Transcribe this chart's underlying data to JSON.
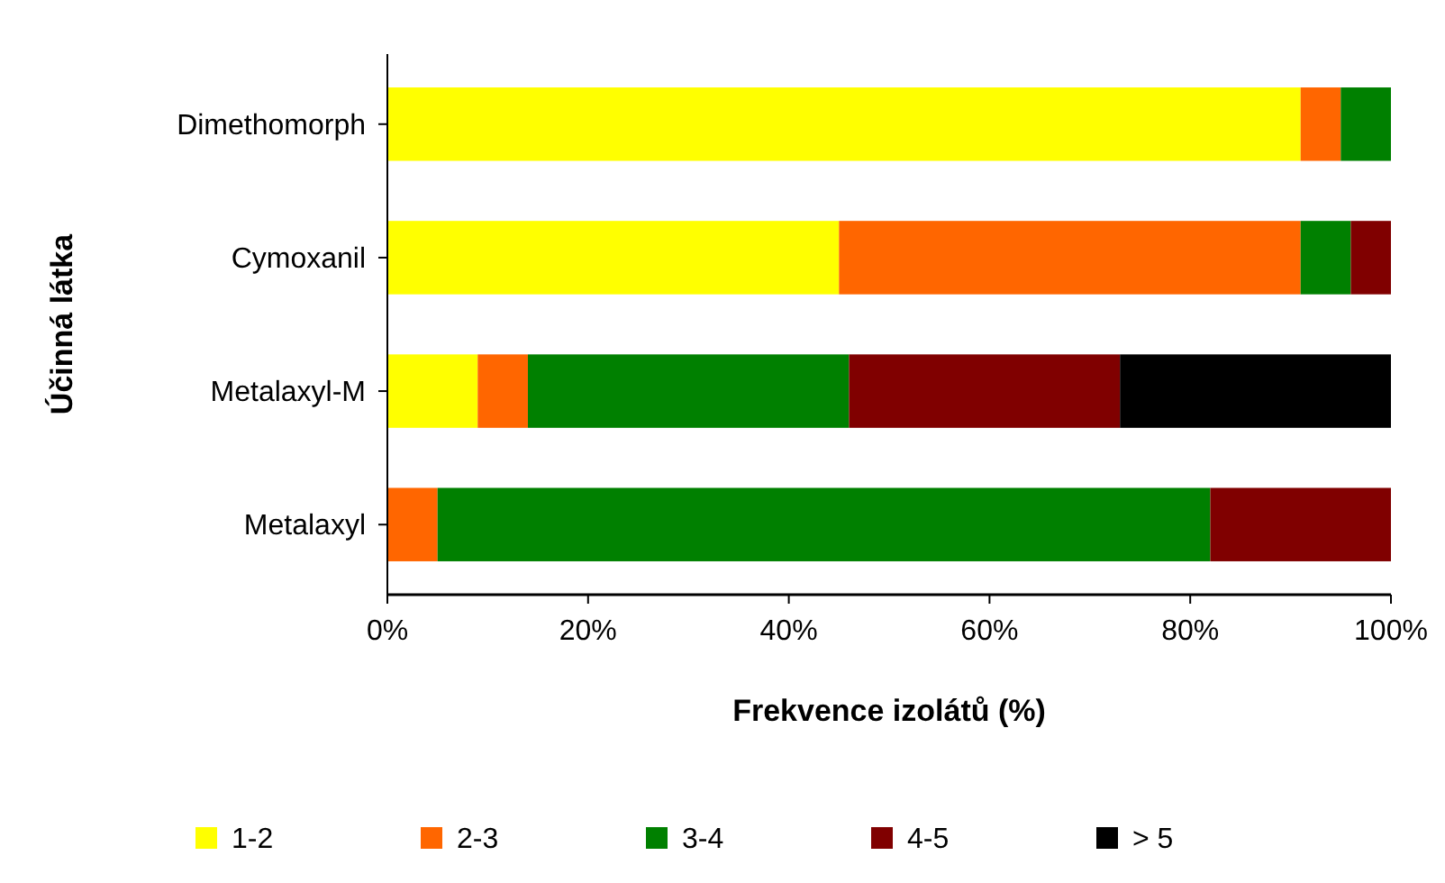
{
  "chart_data": {
    "type": "bar",
    "orientation": "horizontal",
    "stacked": true,
    "ylabel": "Účinná látka",
    "xlabel": "Frekvence izolátů (%)",
    "categories": [
      "Dimethomorph",
      "Cymoxanil",
      "Metalaxyl-M",
      "Metalaxyl"
    ],
    "series": [
      {
        "name": "1-2",
        "color": "#ffff00",
        "values": [
          91,
          45,
          9,
          0
        ]
      },
      {
        "name": "2-3",
        "color": "#ff6600",
        "values": [
          4,
          46,
          5,
          5
        ]
      },
      {
        "name": "3-4",
        "color": "#008000",
        "values": [
          5,
          5,
          32,
          77
        ]
      },
      {
        "name": "4-5",
        "color": "#800000",
        "values": [
          0,
          4,
          27,
          18
        ]
      },
      {
        "name": "> 5",
        "color": "#000000",
        "values": [
          0,
          0,
          27,
          0
        ]
      }
    ],
    "xlim": [
      0,
      100
    ],
    "xticks": [
      {
        "value": 0,
        "label": "0%"
      },
      {
        "value": 20,
        "label": "20%"
      },
      {
        "value": 40,
        "label": "40%"
      },
      {
        "value": 60,
        "label": "60%"
      },
      {
        "value": 80,
        "label": "80%"
      },
      {
        "value": 100,
        "label": "100%"
      }
    ],
    "grid": false,
    "legend": "bottom"
  }
}
